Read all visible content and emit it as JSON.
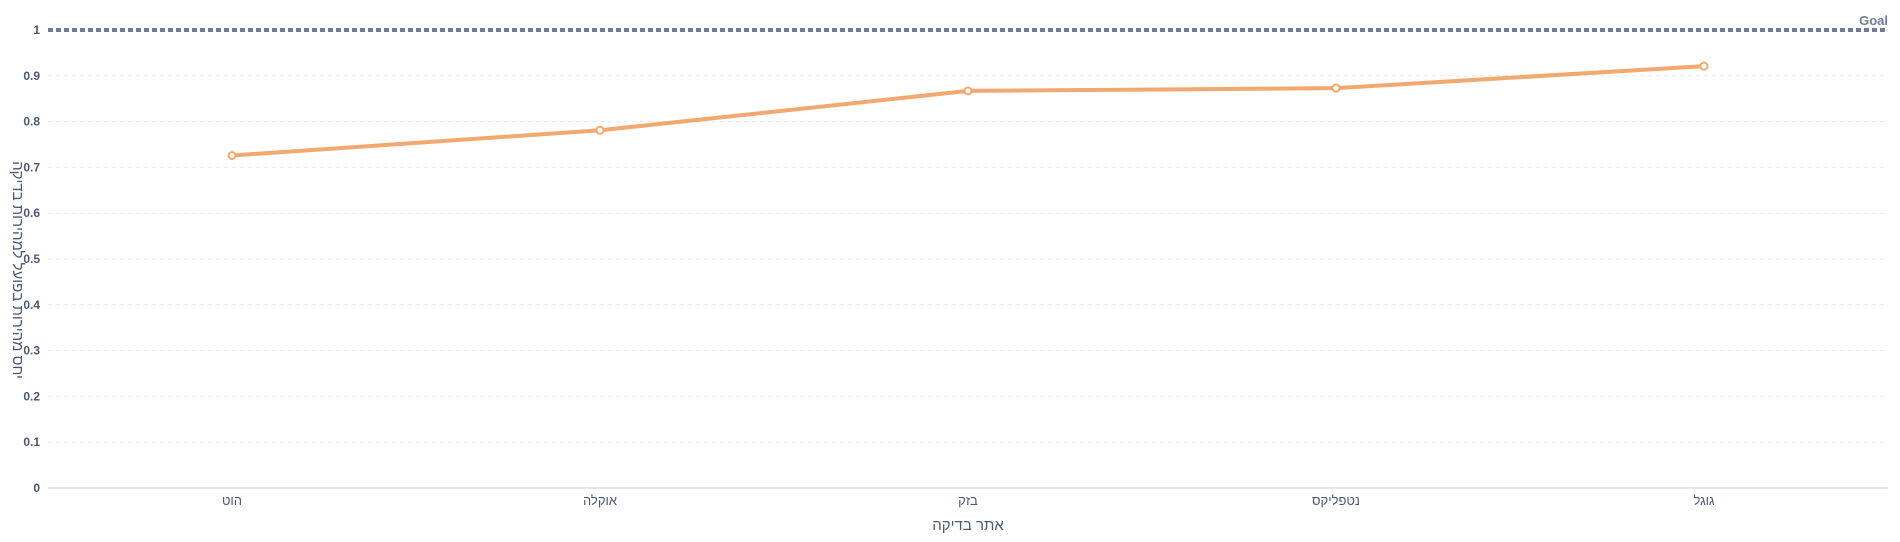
{
  "chart_data": {
    "type": "line",
    "categories": [
      "הוט",
      "אוקלה",
      "בזק",
      "נטפליקס",
      "גוגל"
    ],
    "series": [
      {
        "values": [
          0.726,
          0.781,
          0.867,
          0.873,
          0.921
        ]
      }
    ],
    "xlabel": "אתר בדיקה",
    "ylabel": "יחס מהירות בפועל למהירות בדיקה",
    "yticks": [
      "0",
      "0.1",
      "0.2",
      "0.3",
      "0.4",
      "0.5",
      "0.6",
      "0.7",
      "0.8",
      "0.9",
      "1"
    ],
    "ylim": [
      0,
      1
    ],
    "goal": {
      "label": "Goal",
      "value": 1
    },
    "grid": true,
    "colors": {
      "series": "#f2a86f",
      "goal": "#6e7c96",
      "grid": "#e6e8ec",
      "axis": "#c9ced6",
      "text": "#4c5773"
    }
  }
}
